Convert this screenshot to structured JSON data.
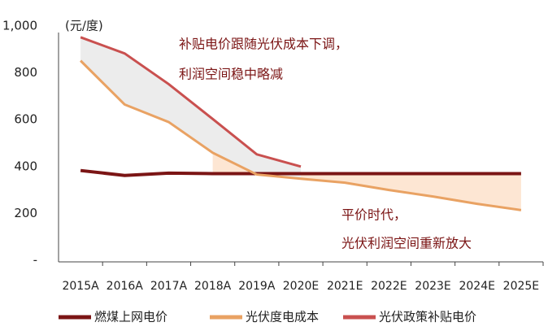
{
  "chart_data": {
    "type": "line",
    "y_unit": "(元/度)",
    "categories": [
      "2015A",
      "2016A",
      "2017A",
      "2018A",
      "2019A",
      "2020E",
      "2021E",
      "2022E",
      "2023E",
      "2024E",
      "2025E"
    ],
    "series": [
      {
        "name": "燃煤上网电价",
        "color": "#7b1515",
        "values": [
          383,
          362,
          372,
          370,
          370,
          370,
          370,
          370,
          370,
          370,
          370
        ]
      },
      {
        "name": "光伏度电成本",
        "color": "#e9a263",
        "values": [
          852,
          665,
          590,
          459,
          366,
          348,
          331,
          300,
          272,
          241,
          214
        ]
      },
      {
        "name": "光伏政策补贴电价",
        "color": "#c9504f",
        "values": [
          952,
          883,
          752,
          603,
          452,
          400,
          null,
          null,
          null,
          null,
          null
        ]
      }
    ],
    "ylim": [
      0,
      1000
    ],
    "yticks": [
      {
        "value": 0,
        "label": "-"
      },
      200,
      400,
      600,
      800,
      {
        "value": 1000,
        "label": "1,000"
      }
    ],
    "annotations": [
      "补贴电价跟随光伏成本下调，",
      "利润空间稳中略减",
      "平价时代，",
      "光伏利润空间重新放大"
    ],
    "grid": false
  }
}
